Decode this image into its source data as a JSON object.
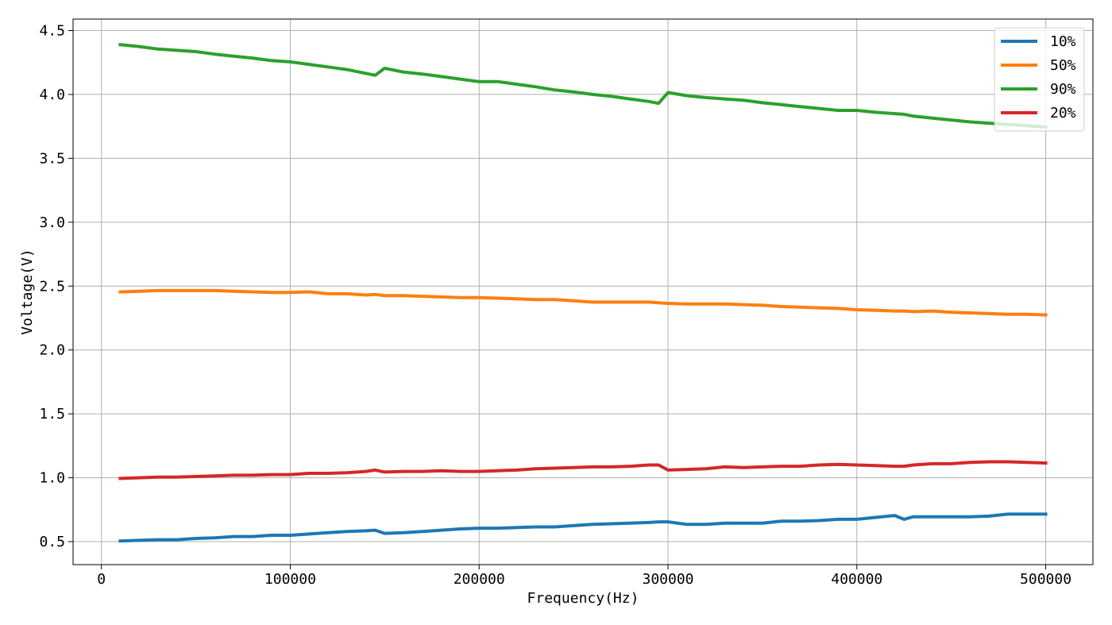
{
  "chart_data": {
    "type": "line",
    "title": "",
    "xlabel": "Frequency(Hz)",
    "ylabel": "Voltage(V)",
    "xlim": [
      -15000,
      525000
    ],
    "ylim": [
      0.32,
      4.59
    ],
    "xticks": [
      0,
      100000,
      200000,
      300000,
      400000,
      500000
    ],
    "xtick_labels": [
      "0",
      "100000",
      "200000",
      "300000",
      "400000",
      "500000"
    ],
    "yticks": [
      0.5,
      1.0,
      1.5,
      2.0,
      2.5,
      3.0,
      3.5,
      4.0,
      4.5
    ],
    "ytick_labels": [
      "0.5",
      "1.0",
      "1.5",
      "2.0",
      "2.5",
      "3.0",
      "3.5",
      "4.0",
      "4.5"
    ],
    "grid": true,
    "legend_position": "top-right",
    "x": [
      10000,
      20000,
      30000,
      40000,
      50000,
      60000,
      70000,
      80000,
      90000,
      100000,
      110000,
      120000,
      130000,
      140000,
      145000,
      150000,
      160000,
      170000,
      180000,
      190000,
      200000,
      210000,
      220000,
      230000,
      240000,
      250000,
      260000,
      270000,
      280000,
      290000,
      295000,
      300000,
      310000,
      320000,
      330000,
      340000,
      350000,
      360000,
      370000,
      380000,
      390000,
      400000,
      410000,
      420000,
      425000,
      430000,
      440000,
      450000,
      460000,
      470000,
      480000,
      490000,
      500000
    ],
    "series": [
      {
        "name": "10%",
        "color": "#1f77b4",
        "values": [
          0.505,
          0.51,
          0.515,
          0.515,
          0.525,
          0.53,
          0.54,
          0.54,
          0.55,
          0.55,
          0.56,
          0.57,
          0.58,
          0.585,
          0.59,
          0.565,
          0.57,
          0.58,
          0.59,
          0.6,
          0.605,
          0.605,
          0.61,
          0.615,
          0.615,
          0.625,
          0.635,
          0.64,
          0.645,
          0.65,
          0.655,
          0.655,
          0.635,
          0.635,
          0.645,
          0.645,
          0.645,
          0.66,
          0.66,
          0.665,
          0.675,
          0.675,
          0.69,
          0.705,
          0.675,
          0.695,
          0.695,
          0.695,
          0.695,
          0.7,
          0.715,
          0.715,
          0.715
        ]
      },
      {
        "name": "50%",
        "color": "#ff7f0e",
        "values": [
          2.455,
          2.46,
          2.465,
          2.465,
          2.465,
          2.465,
          2.46,
          2.455,
          2.45,
          2.45,
          2.455,
          2.44,
          2.44,
          2.43,
          2.435,
          2.425,
          2.425,
          2.42,
          2.415,
          2.41,
          2.41,
          2.405,
          2.4,
          2.395,
          2.395,
          2.385,
          2.375,
          2.375,
          2.375,
          2.375,
          2.37,
          2.365,
          2.36,
          2.36,
          2.36,
          2.355,
          2.35,
          2.34,
          2.335,
          2.33,
          2.325,
          2.315,
          2.31,
          2.305,
          2.305,
          2.3,
          2.305,
          2.295,
          2.29,
          2.285,
          2.28,
          2.28,
          2.275
        ]
      },
      {
        "name": "90%",
        "color": "#2ca02c",
        "values": [
          4.39,
          4.375,
          4.355,
          4.345,
          4.335,
          4.315,
          4.3,
          4.285,
          4.265,
          4.255,
          4.235,
          4.215,
          4.195,
          4.165,
          4.15,
          4.205,
          4.175,
          4.16,
          4.14,
          4.12,
          4.1,
          4.1,
          4.08,
          4.06,
          4.035,
          4.02,
          4.0,
          3.985,
          3.965,
          3.945,
          3.93,
          4.015,
          3.99,
          3.975,
          3.965,
          3.955,
          3.935,
          3.92,
          3.905,
          3.89,
          3.875,
          3.875,
          3.86,
          3.85,
          3.845,
          3.83,
          3.815,
          3.8,
          3.785,
          3.775,
          3.765,
          3.755,
          3.745
        ]
      },
      {
        "name": "20%",
        "color": "#d62728",
        "values": [
          0.995,
          1.0,
          1.005,
          1.005,
          1.01,
          1.015,
          1.02,
          1.02,
          1.025,
          1.025,
          1.035,
          1.035,
          1.04,
          1.05,
          1.06,
          1.045,
          1.05,
          1.05,
          1.055,
          1.05,
          1.05,
          1.055,
          1.06,
          1.07,
          1.075,
          1.08,
          1.085,
          1.085,
          1.09,
          1.1,
          1.1,
          1.06,
          1.065,
          1.07,
          1.085,
          1.08,
          1.085,
          1.09,
          1.09,
          1.1,
          1.105,
          1.1,
          1.095,
          1.09,
          1.09,
          1.1,
          1.11,
          1.11,
          1.12,
          1.125,
          1.125,
          1.12,
          1.115
        ]
      }
    ]
  }
}
